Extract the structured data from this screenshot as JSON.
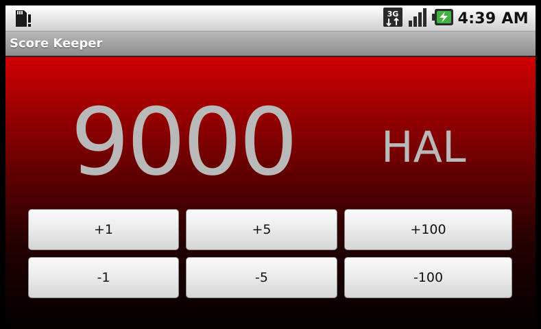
{
  "status_bar": {
    "time": "4:39 AM",
    "network_type": "3G",
    "icons": [
      "sd-card-warning-icon",
      "network-3g-icon",
      "signal-strength-icon",
      "battery-charging-icon"
    ]
  },
  "app": {
    "title": "Score Keeper"
  },
  "scoreboard": {
    "score": "9000",
    "player_name": "HAL"
  },
  "buttons": {
    "plus_1": "+1",
    "plus_5": "+5",
    "plus_100": "+100",
    "minus_1": "-1",
    "minus_5": "-5",
    "minus_100": "-100"
  },
  "colors": {
    "background_top": "#d00000",
    "background_bottom": "#050000",
    "score_text": "#b9b9b9",
    "battery_accent": "#3fb23f"
  }
}
